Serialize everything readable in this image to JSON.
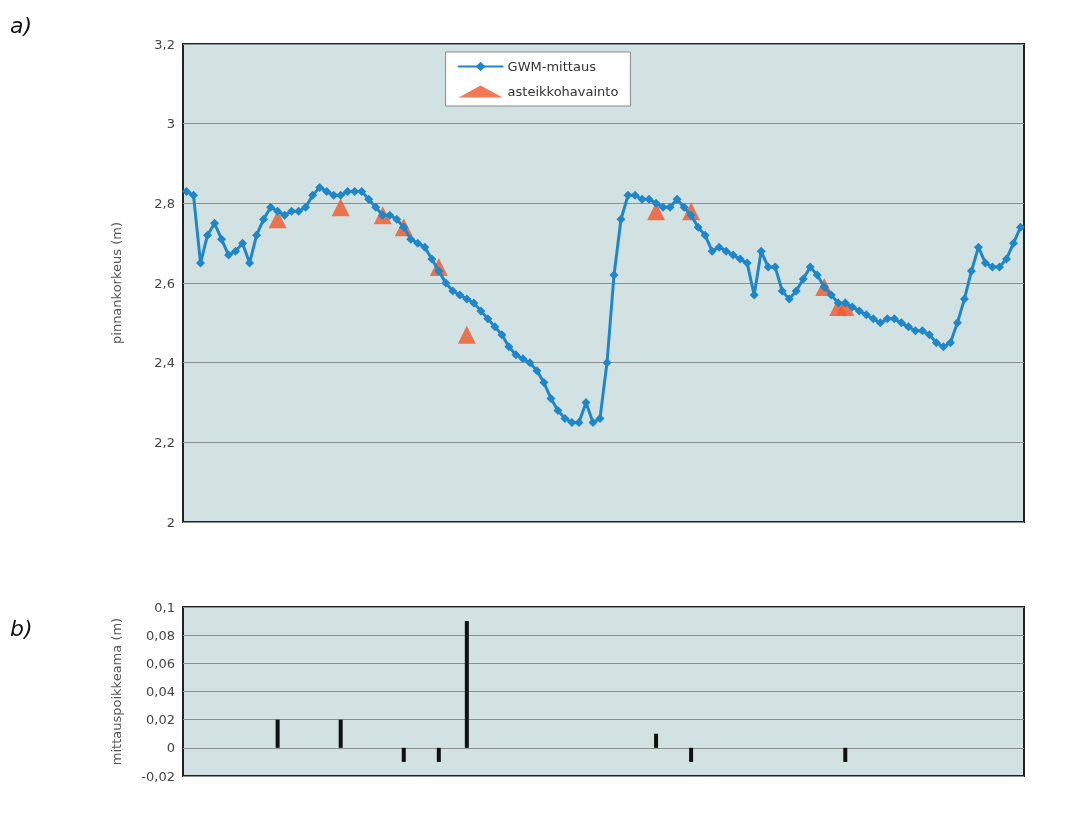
{
  "chart_data": [
    {
      "type": "line",
      "ylabel": "pinnankorkeus (m)",
      "annotations": [
        "a)"
      ],
      "legend": "top",
      "grid": "y",
      "tick_labels": "y",
      "categories": [
        null,
        null,
        null,
        null,
        null,
        null,
        null,
        null,
        null,
        null,
        null,
        null,
        null,
        null,
        null,
        null,
        null,
        null,
        null,
        null,
        null,
        null,
        null,
        null,
        null,
        null,
        null,
        null,
        null,
        null,
        null,
        null,
        null,
        null,
        null,
        null,
        null,
        null,
        null,
        null,
        null,
        null,
        null,
        null,
        null,
        null,
        null,
        null,
        null,
        null,
        null,
        null,
        null,
        null,
        null,
        null,
        null,
        null,
        null,
        null,
        null,
        null,
        null,
        null,
        null,
        null,
        null,
        null,
        null,
        null,
        null,
        null,
        null,
        null,
        null,
        null,
        null,
        null,
        null,
        null,
        null,
        null,
        null,
        null,
        null,
        null,
        null,
        null,
        null,
        null,
        null,
        null,
        null,
        null,
        null,
        null,
        null,
        null,
        null,
        null,
        null,
        null,
        null,
        null,
        null,
        null,
        null,
        null,
        null,
        null,
        null,
        null,
        null,
        null,
        null,
        null,
        null,
        null,
        null,
        null
      ],
      "ylim": [
        2,
        3.2
      ],
      "yticks": [
        2,
        {
          "value": 2.2,
          "label": "2,2"
        },
        {
          "value": 2.4,
          "label": "2,4"
        },
        {
          "value": 2.6,
          "label": "2,6"
        },
        {
          "value": 2.8,
          "label": "2,8"
        },
        3,
        {
          "value": 3.2,
          "label": "3,2"
        }
      ],
      "series": [
        {
          "name": "GWM-mittaus",
          "marker": "diamond",
          "line_style": "solid",
          "color": "#1f86c8",
          "values": [
            2.83,
            2.82,
            2.65,
            2.72,
            2.75,
            2.71,
            2.67,
            2.68,
            2.7,
            2.65,
            2.72,
            2.76,
            2.79,
            2.78,
            2.77,
            2.78,
            2.78,
            2.79,
            2.82,
            2.84,
            2.83,
            2.82,
            2.82,
            2.83,
            2.83,
            2.83,
            2.81,
            2.79,
            2.77,
            2.77,
            2.76,
            2.74,
            2.71,
            2.7,
            2.69,
            2.66,
            2.63,
            2.6,
            2.58,
            2.57,
            2.56,
            2.55,
            2.53,
            2.51,
            2.49,
            2.47,
            2.44,
            2.42,
            2.41,
            2.4,
            2.38,
            2.35,
            2.31,
            2.28,
            2.26,
            2.25,
            2.25,
            2.3,
            2.25,
            2.26,
            2.4,
            2.62,
            2.76,
            2.82,
            2.82,
            2.81,
            2.81,
            2.8,
            2.79,
            2.79,
            2.81,
            2.79,
            2.77,
            2.74,
            2.72,
            2.68,
            2.69,
            2.68,
            2.67,
            2.66,
            2.65,
            2.57,
            2.68,
            2.64,
            2.64,
            2.58,
            2.56,
            2.58,
            2.61,
            2.64,
            2.62,
            2.59,
            2.57,
            2.55,
            2.55,
            2.54,
            2.53,
            2.52,
            2.51,
            2.5,
            2.51,
            2.51,
            2.5,
            2.49,
            2.48,
            2.48,
            2.47,
            2.45,
            2.44,
            2.45,
            2.5,
            2.56,
            2.63,
            2.69,
            2.65,
            2.64,
            2.64,
            2.66,
            2.7,
            2.74
          ]
        },
        {
          "name": "asteikkohavainto",
          "type": "scatter",
          "marker": "triangle",
          "color": "#f0582a",
          "values": [
            null,
            null,
            null,
            null,
            null,
            null,
            null,
            null,
            null,
            null,
            null,
            null,
            null,
            2.76,
            null,
            null,
            null,
            null,
            null,
            null,
            null,
            null,
            2.79,
            null,
            null,
            null,
            null,
            null,
            2.77,
            null,
            null,
            2.74,
            null,
            null,
            null,
            null,
            2.64,
            null,
            null,
            null,
            2.47,
            null,
            null,
            null,
            null,
            null,
            null,
            null,
            null,
            null,
            null,
            null,
            null,
            null,
            null,
            null,
            null,
            null,
            null,
            null,
            null,
            null,
            null,
            null,
            null,
            null,
            null,
            2.78,
            null,
            null,
            null,
            null,
            2.78,
            null,
            null,
            null,
            null,
            null,
            null,
            null,
            null,
            null,
            null,
            null,
            null,
            null,
            null,
            null,
            null,
            null,
            null,
            2.59,
            null,
            2.54,
            2.54,
            null,
            null,
            null,
            null,
            null,
            null,
            null,
            null,
            null,
            null,
            null,
            null,
            null,
            null,
            null,
            null,
            null,
            null,
            null,
            null,
            null,
            null,
            null,
            null,
            null
          ]
        }
      ]
    },
    {
      "type": "bar",
      "ylabel": "mittauspoikkeama (m)",
      "annotations": [
        "b)"
      ],
      "grid": "y",
      "tick_labels": "y",
      "legend": false,
      "color": "#101010",
      "categories": [
        null,
        null,
        null,
        null,
        null,
        null,
        null,
        null,
        null,
        null,
        null,
        null,
        null,
        null,
        null,
        null,
        null,
        null,
        null,
        null,
        null,
        null,
        null,
        null,
        null,
        null,
        null,
        null,
        null,
        null,
        null,
        null,
        null,
        null,
        null,
        null,
        null,
        null,
        null,
        null,
        null,
        null,
        null,
        null,
        null,
        null,
        null,
        null,
        null,
        null,
        null,
        null,
        null,
        null,
        null,
        null,
        null,
        null,
        null,
        null,
        null,
        null,
        null,
        null,
        null,
        null,
        null,
        null,
        null,
        null,
        null,
        null,
        null,
        null,
        null,
        null,
        null,
        null,
        null,
        null,
        null,
        null,
        null,
        null,
        null,
        null,
        null,
        null,
        null,
        null,
        null,
        null,
        null,
        null,
        null,
        null,
        null,
        null,
        null,
        null,
        null,
        null,
        null,
        null,
        null,
        null,
        null,
        null,
        null,
        null,
        null,
        null,
        null,
        null,
        null,
        null,
        null,
        null,
        null,
        null
      ],
      "ylim": [
        -0.02,
        0.1
      ],
      "yticks": [
        {
          "value": -0.02,
          "label": "-0,02"
        },
        0,
        {
          "value": 0.02,
          "label": "0,02"
        },
        {
          "value": 0.04,
          "label": "0,04"
        },
        {
          "value": 0.06,
          "label": "0,06"
        },
        {
          "value": 0.08,
          "label": "0,08"
        },
        {
          "value": 0.1,
          "label": "0,1"
        }
      ],
      "values": [
        null,
        null,
        null,
        null,
        null,
        null,
        null,
        null,
        null,
        null,
        null,
        null,
        null,
        0.02,
        null,
        null,
        null,
        null,
        null,
        null,
        null,
        null,
        0.02,
        null,
        null,
        null,
        null,
        null,
        null,
        null,
        null,
        -0.01,
        null,
        null,
        null,
        null,
        -0.01,
        null,
        null,
        null,
        0.09,
        null,
        null,
        null,
        null,
        null,
        null,
        null,
        null,
        null,
        null,
        null,
        null,
        null,
        null,
        null,
        null,
        null,
        null,
        null,
        null,
        null,
        null,
        null,
        null,
        null,
        null,
        0.01,
        null,
        null,
        null,
        null,
        -0.01,
        null,
        null,
        null,
        null,
        null,
        null,
        null,
        null,
        null,
        null,
        null,
        null,
        null,
        null,
        null,
        null,
        null,
        null,
        null,
        null,
        null,
        -0.01,
        null,
        null,
        null,
        null,
        null,
        null,
        null,
        null,
        null,
        null,
        null,
        null,
        null,
        null,
        null,
        null,
        null,
        null,
        null,
        null,
        null,
        null,
        null,
        null,
        null
      ]
    }
  ]
}
